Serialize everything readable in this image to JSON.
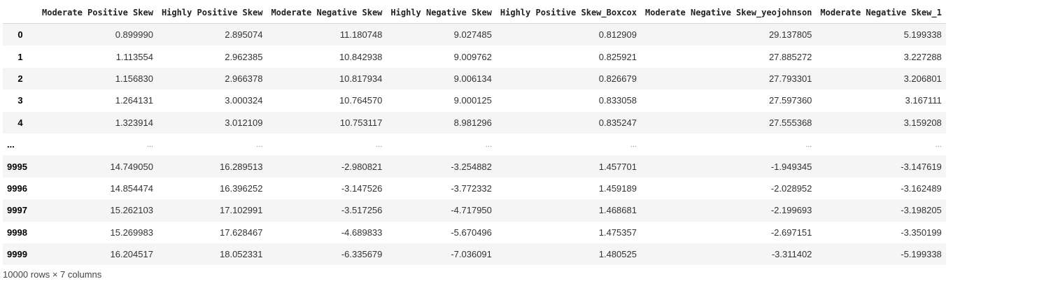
{
  "table": {
    "columns": [
      "",
      "Moderate Positive Skew",
      "Highly Positive Skew",
      "Moderate Negative Skew",
      "Highly Negative Skew",
      "Highly Positive Skew_Boxcox",
      "Moderate Negative Skew_yeojohnson",
      "Moderate Negative Skew_1"
    ],
    "rows": [
      [
        "0",
        "0.899990",
        "2.895074",
        "11.180748",
        "9.027485",
        "0.812909",
        "29.137805",
        "5.199338"
      ],
      [
        "1",
        "1.113554",
        "2.962385",
        "10.842938",
        "9.009762",
        "0.825921",
        "27.885272",
        "3.227288"
      ],
      [
        "2",
        "1.156830",
        "2.966378",
        "10.817934",
        "9.006134",
        "0.826679",
        "27.793301",
        "3.206801"
      ],
      [
        "3",
        "1.264131",
        "3.000324",
        "10.764570",
        "9.000125",
        "0.833058",
        "27.597360",
        "3.167111"
      ],
      [
        "4",
        "1.323914",
        "3.012109",
        "10.753117",
        "8.981296",
        "0.835247",
        "27.555368",
        "3.159208"
      ],
      [
        "...",
        "...",
        "...",
        "...",
        "...",
        "...",
        "...",
        "..."
      ],
      [
        "9995",
        "14.749050",
        "16.289513",
        "-2.980821",
        "-3.254882",
        "1.457701",
        "-1.949345",
        "-3.147619"
      ],
      [
        "9996",
        "14.854474",
        "16.396252",
        "-3.147526",
        "-3.772332",
        "1.459189",
        "-2.028952",
        "-3.162489"
      ],
      [
        "9997",
        "15.262103",
        "17.102991",
        "-3.517256",
        "-4.717950",
        "1.468681",
        "-2.199693",
        "-3.198205"
      ],
      [
        "9998",
        "15.269983",
        "17.628467",
        "-4.689833",
        "-5.670496",
        "1.475357",
        "-2.697151",
        "-3.350199"
      ],
      [
        "9999",
        "16.204517",
        "18.052331",
        "-6.335679",
        "-7.036091",
        "1.480525",
        "-3.311402",
        "-5.199338"
      ]
    ]
  },
  "shape_text": "10000 rows × 7 columns"
}
